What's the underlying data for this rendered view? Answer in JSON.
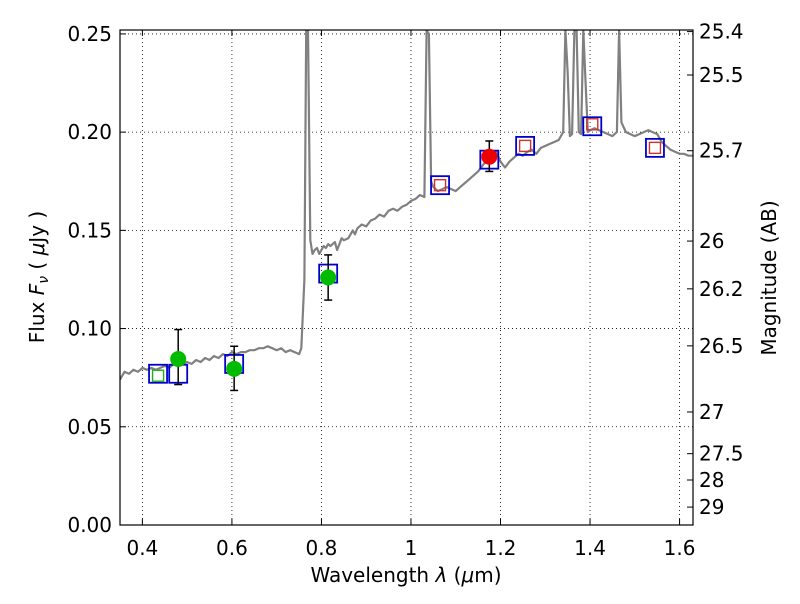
{
  "chart_data": {
    "type": "scatter",
    "title": "",
    "xlabel": "Wavelength  λ (μm)",
    "ylabel": "Flux  F_ν  ( μJy )",
    "ylabel_parts": {
      "pre": "Flux  ",
      "var": "F",
      "sub": "ν",
      "mid": "  ( ",
      "mu": "μ",
      "post": "Jy )"
    },
    "xlabel_parts": {
      "pre": "Wavelength  ",
      "var": "λ",
      "mid": " (",
      "mu": "μ",
      "post": "m)"
    },
    "y2label": "Magnitude (AB)",
    "xlim": [
      0.35,
      1.63
    ],
    "ylim": [
      0.0,
      0.252
    ],
    "grid": true,
    "colors": {
      "spectrum": "#808080",
      "open_box": "#0000cc",
      "model_box": "#cc3333",
      "model_box_green": "#22aa22",
      "filled_green": "#00bb00",
      "filled_red": "#ee0000",
      "errorbar": "#000000"
    },
    "x_ticks": [
      {
        "value": 0.4,
        "label": "0.4"
      },
      {
        "value": 0.6,
        "label": "0.6"
      },
      {
        "value": 0.8,
        "label": "0.8"
      },
      {
        "value": 1.0,
        "label": "1"
      },
      {
        "value": 1.2,
        "label": "1.2"
      },
      {
        "value": 1.4,
        "label": "1.4"
      },
      {
        "value": 1.6,
        "label": "1.6"
      }
    ],
    "y_ticks": [
      {
        "value": 0.0,
        "label": "0.00"
      },
      {
        "value": 0.05,
        "label": "0.05"
      },
      {
        "value": 0.1,
        "label": "0.10"
      },
      {
        "value": 0.15,
        "label": "0.15"
      },
      {
        "value": 0.2,
        "label": "0.20"
      },
      {
        "value": 0.25,
        "label": "0.25"
      }
    ],
    "y2_ticks": [
      {
        "mag": 25.4,
        "label": "25.4"
      },
      {
        "mag": 25.5,
        "label": "25.5"
      },
      {
        "mag": 25.7,
        "label": "25.7"
      },
      {
        "mag": 26,
        "label": "26"
      },
      {
        "mag": 26.2,
        "label": "26.2"
      },
      {
        "mag": 26.5,
        "label": "26.5"
      },
      {
        "mag": 27,
        "label": "27"
      },
      {
        "mag": 27.5,
        "label": "27.5"
      },
      {
        "mag": 28,
        "label": "28"
      },
      {
        "mag": 29,
        "label": "29"
      }
    ],
    "spectrum": [
      [
        0.35,
        0.074
      ],
      [
        0.36,
        0.078
      ],
      [
        0.37,
        0.077
      ],
      [
        0.38,
        0.079
      ],
      [
        0.39,
        0.078
      ],
      [
        0.4,
        0.08
      ],
      [
        0.41,
        0.079
      ],
      [
        0.42,
        0.08
      ],
      [
        0.43,
        0.079
      ],
      [
        0.44,
        0.08
      ],
      [
        0.45,
        0.081
      ],
      [
        0.46,
        0.08
      ],
      [
        0.47,
        0.082
      ],
      [
        0.48,
        0.081
      ],
      [
        0.49,
        0.082
      ],
      [
        0.5,
        0.083
      ],
      [
        0.51,
        0.082
      ],
      [
        0.52,
        0.084
      ],
      [
        0.53,
        0.083
      ],
      [
        0.54,
        0.085
      ],
      [
        0.55,
        0.084
      ],
      [
        0.56,
        0.086
      ],
      [
        0.57,
        0.085
      ],
      [
        0.58,
        0.087
      ],
      [
        0.59,
        0.086
      ],
      [
        0.6,
        0.088
      ],
      [
        0.61,
        0.087
      ],
      [
        0.62,
        0.088
      ],
      [
        0.63,
        0.088
      ],
      [
        0.64,
        0.089
      ],
      [
        0.65,
        0.089
      ],
      [
        0.66,
        0.09
      ],
      [
        0.67,
        0.09
      ],
      [
        0.68,
        0.091
      ],
      [
        0.69,
        0.09
      ],
      [
        0.7,
        0.089
      ],
      [
        0.71,
        0.09
      ],
      [
        0.72,
        0.088
      ],
      [
        0.73,
        0.089
      ],
      [
        0.74,
        0.088
      ],
      [
        0.75,
        0.087
      ],
      [
        0.755,
        0.09
      ],
      [
        0.762,
        0.125
      ],
      [
        0.766,
        0.252
      ],
      [
        0.77,
        0.252
      ],
      [
        0.775,
        0.145
      ],
      [
        0.78,
        0.138
      ],
      [
        0.785,
        0.14
      ],
      [
        0.79,
        0.141
      ],
      [
        0.795,
        0.138
      ],
      [
        0.8,
        0.14
      ],
      [
        0.805,
        0.142
      ],
      [
        0.81,
        0.141
      ],
      [
        0.815,
        0.143
      ],
      [
        0.82,
        0.142
      ],
      [
        0.83,
        0.144
      ],
      [
        0.835,
        0.14
      ],
      [
        0.84,
        0.143
      ],
      [
        0.845,
        0.146
      ],
      [
        0.85,
        0.145
      ],
      [
        0.86,
        0.146
      ],
      [
        0.87,
        0.15
      ],
      [
        0.875,
        0.148
      ],
      [
        0.88,
        0.151
      ],
      [
        0.89,
        0.153
      ],
      [
        0.9,
        0.152
      ],
      [
        0.91,
        0.155
      ],
      [
        0.92,
        0.156
      ],
      [
        0.93,
        0.158
      ],
      [
        0.94,
        0.157
      ],
      [
        0.95,
        0.16
      ],
      [
        0.96,
        0.161
      ],
      [
        0.97,
        0.16
      ],
      [
        0.98,
        0.162
      ],
      [
        0.99,
        0.163
      ],
      [
        1.0,
        0.165
      ],
      [
        1.01,
        0.166
      ],
      [
        1.02,
        0.168
      ],
      [
        1.03,
        0.167
      ],
      [
        1.035,
        0.252
      ],
      [
        1.04,
        0.25
      ],
      [
        1.045,
        0.175
      ],
      [
        1.05,
        0.172
      ],
      [
        1.06,
        0.17
      ],
      [
        1.07,
        0.171
      ],
      [
        1.08,
        0.172
      ],
      [
        1.09,
        0.171
      ],
      [
        1.1,
        0.17
      ],
      [
        1.11,
        0.172
      ],
      [
        1.12,
        0.174
      ],
      [
        1.13,
        0.176
      ],
      [
        1.14,
        0.178
      ],
      [
        1.15,
        0.18
      ],
      [
        1.16,
        0.183
      ],
      [
        1.17,
        0.186
      ],
      [
        1.18,
        0.188
      ],
      [
        1.19,
        0.19
      ],
      [
        1.2,
        0.185
      ],
      [
        1.21,
        0.182
      ],
      [
        1.22,
        0.185
      ],
      [
        1.23,
        0.187
      ],
      [
        1.24,
        0.189
      ],
      [
        1.25,
        0.188
      ],
      [
        1.26,
        0.19
      ],
      [
        1.27,
        0.191
      ],
      [
        1.28,
        0.189
      ],
      [
        1.29,
        0.192
      ],
      [
        1.3,
        0.193
      ],
      [
        1.31,
        0.194
      ],
      [
        1.32,
        0.195
      ],
      [
        1.33,
        0.196
      ],
      [
        1.34,
        0.2
      ],
      [
        1.345,
        0.252
      ],
      [
        1.35,
        0.23
      ],
      [
        1.355,
        0.198
      ],
      [
        1.36,
        0.199
      ],
      [
        1.365,
        0.252
      ],
      [
        1.37,
        0.252
      ],
      [
        1.375,
        0.2
      ],
      [
        1.38,
        0.199
      ],
      [
        1.385,
        0.252
      ],
      [
        1.39,
        0.225
      ],
      [
        1.395,
        0.2
      ],
      [
        1.4,
        0.201
      ],
      [
        1.41,
        0.202
      ],
      [
        1.42,
        0.201
      ],
      [
        1.43,
        0.2
      ],
      [
        1.44,
        0.199
      ],
      [
        1.45,
        0.198
      ],
      [
        1.46,
        0.2
      ],
      [
        1.465,
        0.252
      ],
      [
        1.47,
        0.205
      ],
      [
        1.48,
        0.2
      ],
      [
        1.49,
        0.199
      ],
      [
        1.5,
        0.198
      ],
      [
        1.51,
        0.199
      ],
      [
        1.52,
        0.2
      ],
      [
        1.53,
        0.201
      ],
      [
        1.54,
        0.2
      ],
      [
        1.55,
        0.199
      ],
      [
        1.56,
        0.195
      ],
      [
        1.57,
        0.193
      ],
      [
        1.58,
        0.191
      ],
      [
        1.59,
        0.19
      ],
      [
        1.6,
        0.189
      ],
      [
        1.61,
        0.189
      ],
      [
        1.62,
        0.188
      ],
      [
        1.63,
        0.188
      ]
    ],
    "photometry_boxes": [
      {
        "x": 0.435,
        "y": 0.077
      },
      {
        "x": 0.48,
        "y": 0.077
      },
      {
        "x": 0.605,
        "y": 0.082
      },
      {
        "x": 0.815,
        "y": 0.128
      },
      {
        "x": 1.065,
        "y": 0.173
      },
      {
        "x": 1.175,
        "y": 0.186
      },
      {
        "x": 1.255,
        "y": 0.193
      },
      {
        "x": 1.405,
        "y": 0.203
      },
      {
        "x": 1.545,
        "y": 0.192
      }
    ],
    "model_boxes": [
      {
        "x": 0.435,
        "y": 0.076,
        "color": "green"
      },
      {
        "x": 1.065,
        "y": 0.173,
        "color": "red"
      },
      {
        "x": 1.255,
        "y": 0.193,
        "color": "red"
      },
      {
        "x": 1.405,
        "y": 0.204,
        "color": "red"
      },
      {
        "x": 1.545,
        "y": 0.192,
        "color": "red"
      }
    ],
    "measurements": [
      {
        "x": 0.48,
        "y": 0.0845,
        "yerr_low": 0.0715,
        "yerr_high": 0.0995,
        "color": "green"
      },
      {
        "x": 0.605,
        "y": 0.0795,
        "yerr_low": 0.0685,
        "yerr_high": 0.091,
        "color": "green"
      },
      {
        "x": 0.815,
        "y": 0.126,
        "yerr_low": 0.1145,
        "yerr_high": 0.1375,
        "color": "green"
      },
      {
        "x": 1.175,
        "y": 0.1875,
        "yerr_low": 0.18,
        "yerr_high": 0.1955,
        "color": "red"
      }
    ]
  }
}
